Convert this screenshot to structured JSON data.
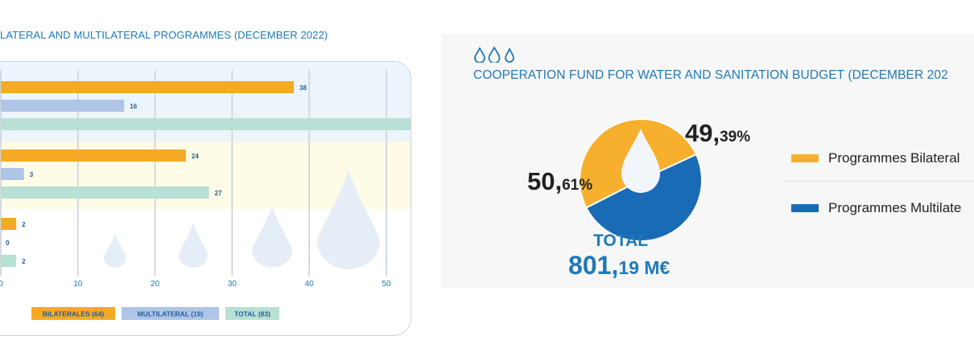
{
  "left_title": "LATERAL AND MULTILATERAL PROGRAMMES (DECEMBER 2022)",
  "right_title": "COOPERATION FUND FOR WATER AND SANITATION BUDGET (DECEMBER 202",
  "colors": {
    "bilateral": "#f5aa25",
    "multilateral": "#aec5e8",
    "total": "#b8e0d4",
    "pie_bilateral": "#f6b02d",
    "pie_multilateral": "#1a6bb5",
    "accent_blue": "#1f79b9"
  },
  "chart_data": [
    {
      "type": "bar",
      "orientation": "horizontal",
      "title": "LATERAL AND MULTILATERAL PROGRAMMES (DECEMBER 2022)",
      "xlim": [
        0,
        50
      ],
      "x_ticks": [
        0,
        10,
        20,
        30,
        40,
        50
      ],
      "grid": true,
      "legend_position": "bottom",
      "groups": [
        {
          "values": {
            "BILATERALES (64)": 38,
            "MULTILATERAL (19)": 16,
            "TOTAL (83)": 54
          }
        },
        {
          "values": {
            "BILATERALES (64)": 24,
            "MULTILATERAL (19)": 3,
            "TOTAL (83)": 27
          }
        },
        {
          "values": {
            "BILATERALES (64)": 2,
            "MULTILATERAL (19)": 0,
            "TOTAL (83)": 2
          }
        }
      ],
      "series": [
        {
          "name": "BILATERALES (64)",
          "values": [
            38,
            24,
            2
          ]
        },
        {
          "name": "MULTILATERAL (19)",
          "values": [
            16,
            3,
            0
          ]
        },
        {
          "name": "TOTAL (83)",
          "values": [
            54,
            27,
            2
          ]
        }
      ]
    },
    {
      "type": "pie",
      "title": "COOPERATION FUND FOR WATER AND SANITATION BUDGET (DECEMBER 202",
      "slices": [
        {
          "name": "Programmes Bilateral",
          "value": 50.61,
          "label_big": "50,",
          "label_small": "61%"
        },
        {
          "name": "Programmes Multilate",
          "value": 49.39,
          "label_big": "49,",
          "label_small": "39%"
        }
      ],
      "total_label": "TOTAL",
      "total_value_big": "801,",
      "total_value_small": "19 M€",
      "legend_position": "right"
    }
  ]
}
